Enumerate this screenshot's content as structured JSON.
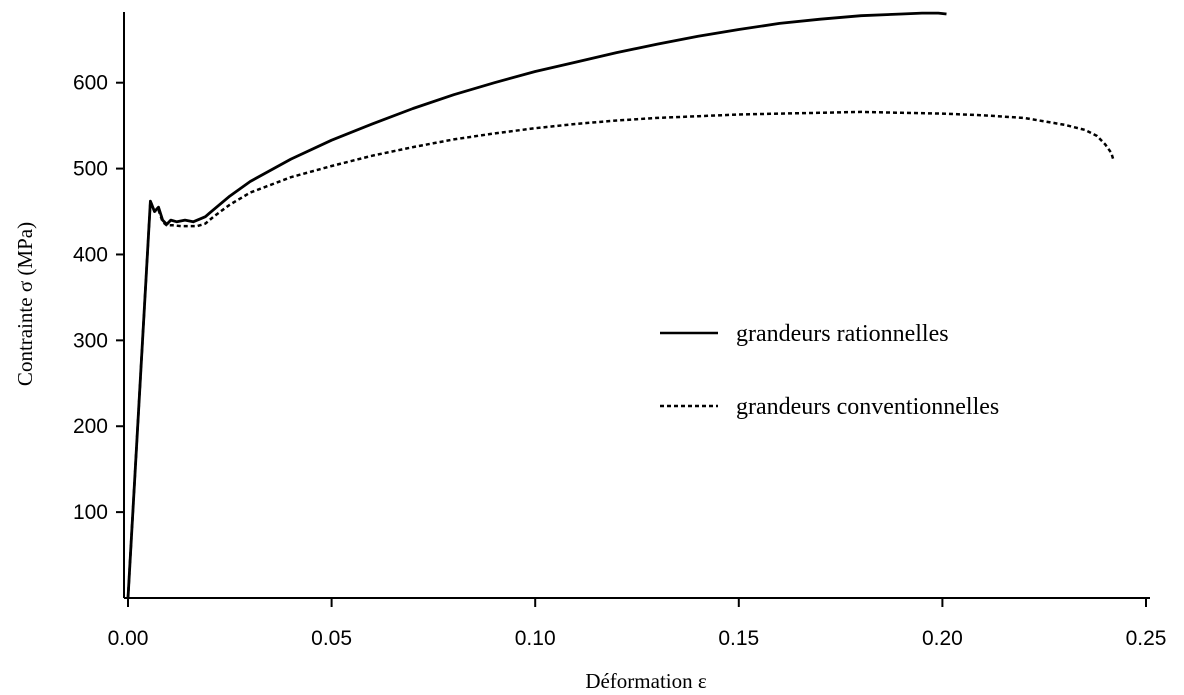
{
  "chart_data": {
    "type": "line",
    "title": "",
    "xlabel": "Déformation ε",
    "ylabel": "Contrainte σ (MPa)",
    "xlim": [
      0,
      0.25
    ],
    "ylim": [
      0,
      680
    ],
    "xticks": [
      0.0,
      0.05,
      0.1,
      0.15,
      0.2,
      0.25
    ],
    "xtick_labels": [
      "0.00",
      "0.05",
      "0.10",
      "0.15",
      "0.20",
      "0.25"
    ],
    "yticks": [
      100,
      200,
      300,
      400,
      500,
      600
    ],
    "ytick_labels": [
      "100",
      "200",
      "300",
      "400",
      "500",
      "600"
    ],
    "grid": false,
    "legend_position": "center-right",
    "series": [
      {
        "name": "grandeurs rationnelles",
        "style": "solid",
        "color": "#000000",
        "x": [
          0.0,
          0.0055,
          0.0065,
          0.0075,
          0.0085,
          0.0095,
          0.0105,
          0.012,
          0.014,
          0.016,
          0.018,
          0.019,
          0.02,
          0.025,
          0.03,
          0.04,
          0.05,
          0.06,
          0.07,
          0.08,
          0.09,
          0.1,
          0.11,
          0.12,
          0.13,
          0.14,
          0.15,
          0.16,
          0.17,
          0.18,
          0.19,
          0.195,
          0.199,
          0.201
        ],
        "y": [
          0,
          462,
          450,
          455,
          440,
          435,
          440,
          438,
          440,
          438,
          442,
          444,
          448,
          468,
          485,
          511,
          533,
          552,
          570,
          586,
          600,
          613,
          624,
          635,
          645,
          654,
          662,
          669,
          674,
          678,
          680,
          681,
          681,
          680
        ]
      },
      {
        "name": "grandeurs conventionnelles",
        "style": "dashed",
        "color": "#000000",
        "x": [
          0.0,
          0.0055,
          0.0065,
          0.0075,
          0.0085,
          0.0095,
          0.011,
          0.013,
          0.015,
          0.017,
          0.019,
          0.021,
          0.025,
          0.03,
          0.04,
          0.05,
          0.06,
          0.07,
          0.08,
          0.09,
          0.1,
          0.11,
          0.12,
          0.13,
          0.14,
          0.15,
          0.16,
          0.17,
          0.18,
          0.19,
          0.2,
          0.21,
          0.22,
          0.23,
          0.235,
          0.238,
          0.24,
          0.2415,
          0.242
        ],
        "y": [
          0,
          462,
          450,
          452,
          438,
          434,
          434,
          433,
          433,
          433,
          436,
          444,
          458,
          472,
          490,
          503,
          515,
          525,
          534,
          541,
          547,
          552,
          556,
          559,
          561,
          563,
          564,
          565,
          566,
          565,
          564,
          562,
          559,
          551,
          545,
          538,
          528,
          518,
          510
        ]
      }
    ]
  }
}
